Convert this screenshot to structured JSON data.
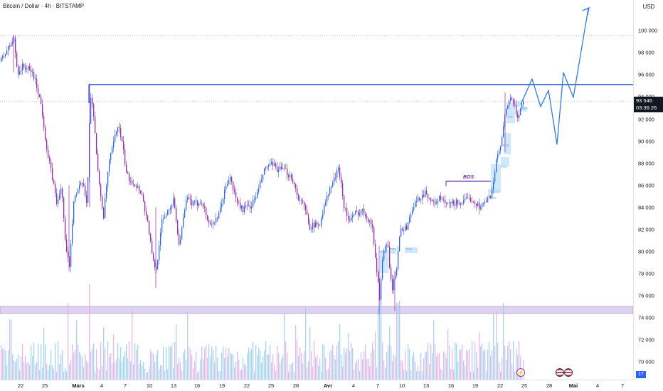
{
  "header": {
    "title": "Bitcoin / Dollar · 4h · BITSTAMP"
  },
  "price_axis": {
    "currency": "USD",
    "ticks": [
      "100 000",
      "98 000",
      "96 000",
      "94 000",
      "92 000",
      "90 000",
      "88 000",
      "86 000",
      "84 000",
      "82 000",
      "80 000",
      "78 000",
      "76 000",
      "74 000",
      "72 000",
      "70 000"
    ],
    "last_price": "93 546",
    "countdown": "03:36:26",
    "volume_badge": "17"
  },
  "time_axis": {
    "ticks": [
      {
        "label": "22",
        "bold": false
      },
      {
        "label": "25",
        "bold": false
      },
      {
        "label": "Mars",
        "bold": true
      },
      {
        "label": "4",
        "bold": false
      },
      {
        "label": "7",
        "bold": false
      },
      {
        "label": "10",
        "bold": false
      },
      {
        "label": "13",
        "bold": false
      },
      {
        "label": "16",
        "bold": false
      },
      {
        "label": "19",
        "bold": false
      },
      {
        "label": "22",
        "bold": false
      },
      {
        "label": "25",
        "bold": false
      },
      {
        "label": "28",
        "bold": false
      },
      {
        "label": "Avr",
        "bold": true
      },
      {
        "label": "4",
        "bold": false
      },
      {
        "label": "7",
        "bold": false
      },
      {
        "label": "10",
        "bold": false
      },
      {
        "label": "13",
        "bold": false
      },
      {
        "label": "16",
        "bold": false
      },
      {
        "label": "19",
        "bold": false
      },
      {
        "label": "22",
        "bold": false
      },
      {
        "label": "25",
        "bold": false
      },
      {
        "label": "28",
        "bold": false
      },
      {
        "label": "Mai",
        "bold": true
      },
      {
        "label": "4",
        "bold": false
      },
      {
        "label": "7",
        "bold": false
      }
    ]
  },
  "annotations": {
    "bos_label": "BOS",
    "fvg_label": "FVG"
  },
  "colors": {
    "up": "#2962ff",
    "down": "#9c27b0",
    "resistance": "#1e4bd2",
    "projection": "#2f7be9",
    "support_zone": "#d1c4e9",
    "fvg_box": "#bbdefb"
  },
  "icons": {
    "events": [
      "flash-icon",
      "us-flag-icon",
      "us-flag-icon"
    ]
  }
}
